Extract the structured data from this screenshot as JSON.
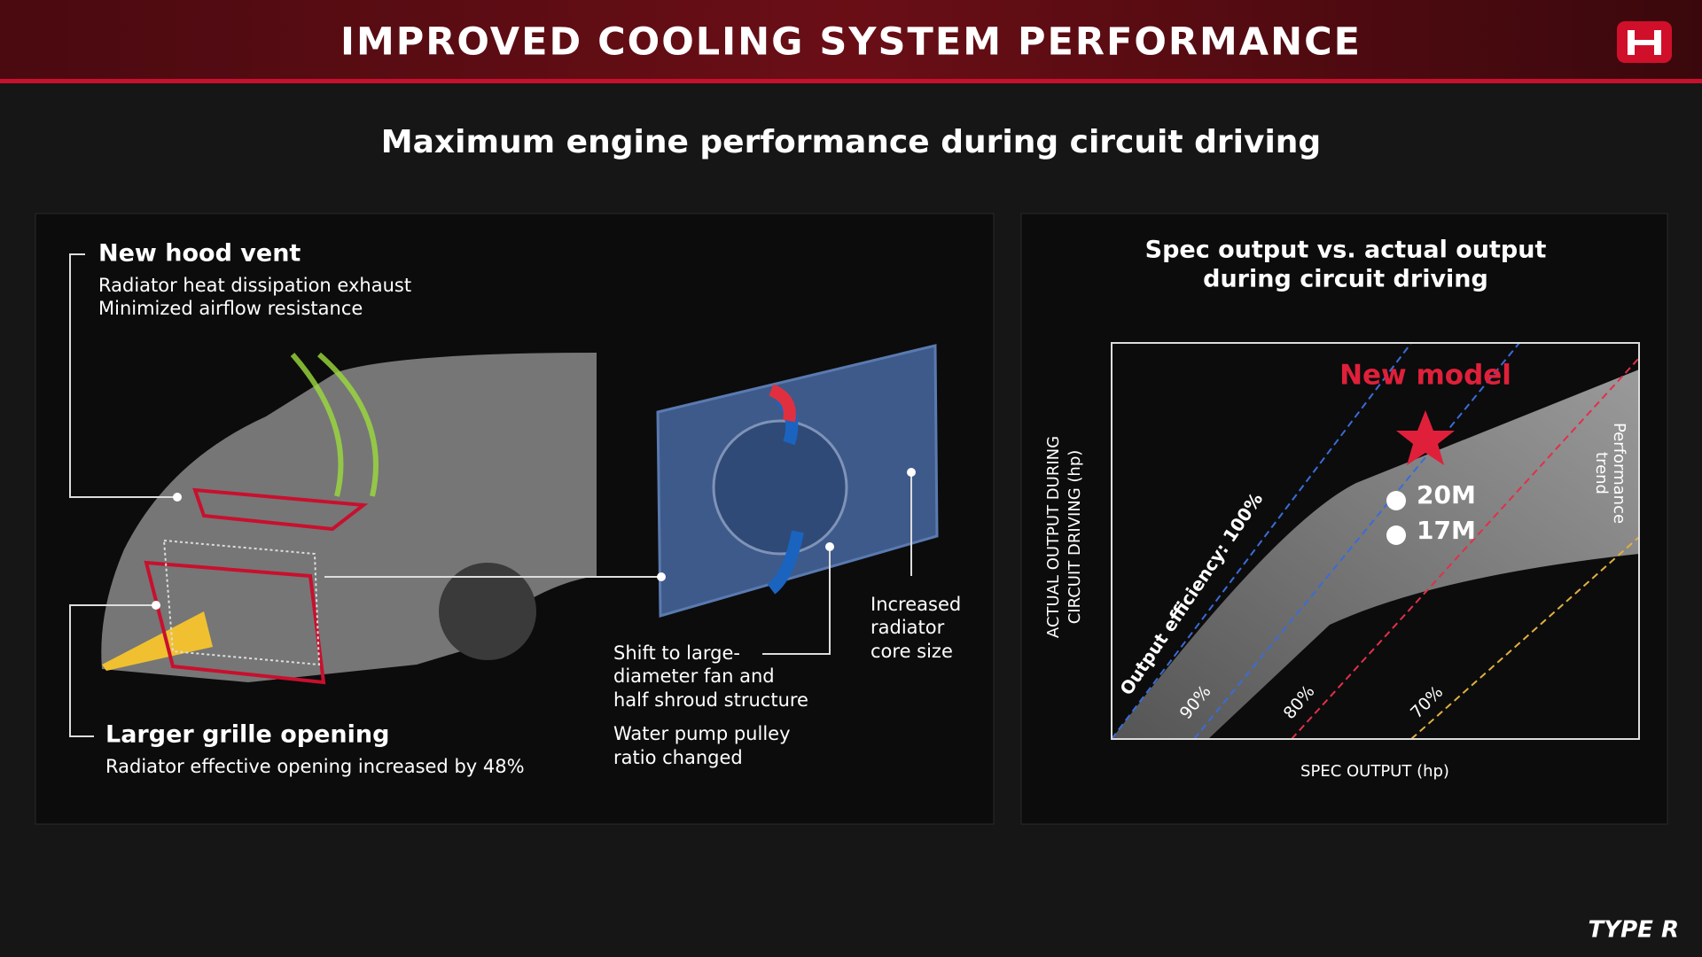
{
  "header": {
    "title": "IMPROVED COOLING SYSTEM PERFORMANCE"
  },
  "subtitle": "Maximum engine performance during circuit driving",
  "left_panel": {
    "hood_vent": {
      "title": "New hood vent",
      "lines": [
        "Radiator heat dissipation exhaust",
        "Minimized airflow resistance"
      ]
    },
    "grille": {
      "title": "Larger grille opening",
      "lines": [
        "Radiator effective opening increased by 48%"
      ]
    },
    "fan": {
      "lines": [
        "Shift to large-",
        "diameter fan and",
        "half shroud structure"
      ]
    },
    "pump": {
      "lines": [
        "Water pump pulley",
        "ratio changed"
      ]
    },
    "radiator": {
      "lines": [
        "Increased",
        "radiator",
        "core size"
      ]
    }
  },
  "right_panel": {
    "title": [
      "Spec output vs. actual output",
      "during circuit driving"
    ],
    "y_label": [
      "ACTUAL OUTPUT DURING",
      "CIRCUIT DRIVING (hp)"
    ],
    "x_label": "SPEC OUTPUT (hp)",
    "new_model": "New model",
    "points": [
      "20M",
      "17M"
    ],
    "trend": [
      "Performance",
      "trend"
    ],
    "efficiency_labels": [
      "Output efficiency: 100%",
      "90%",
      "80%",
      "70%"
    ]
  },
  "footer": {
    "logo": "TYPE R"
  }
}
